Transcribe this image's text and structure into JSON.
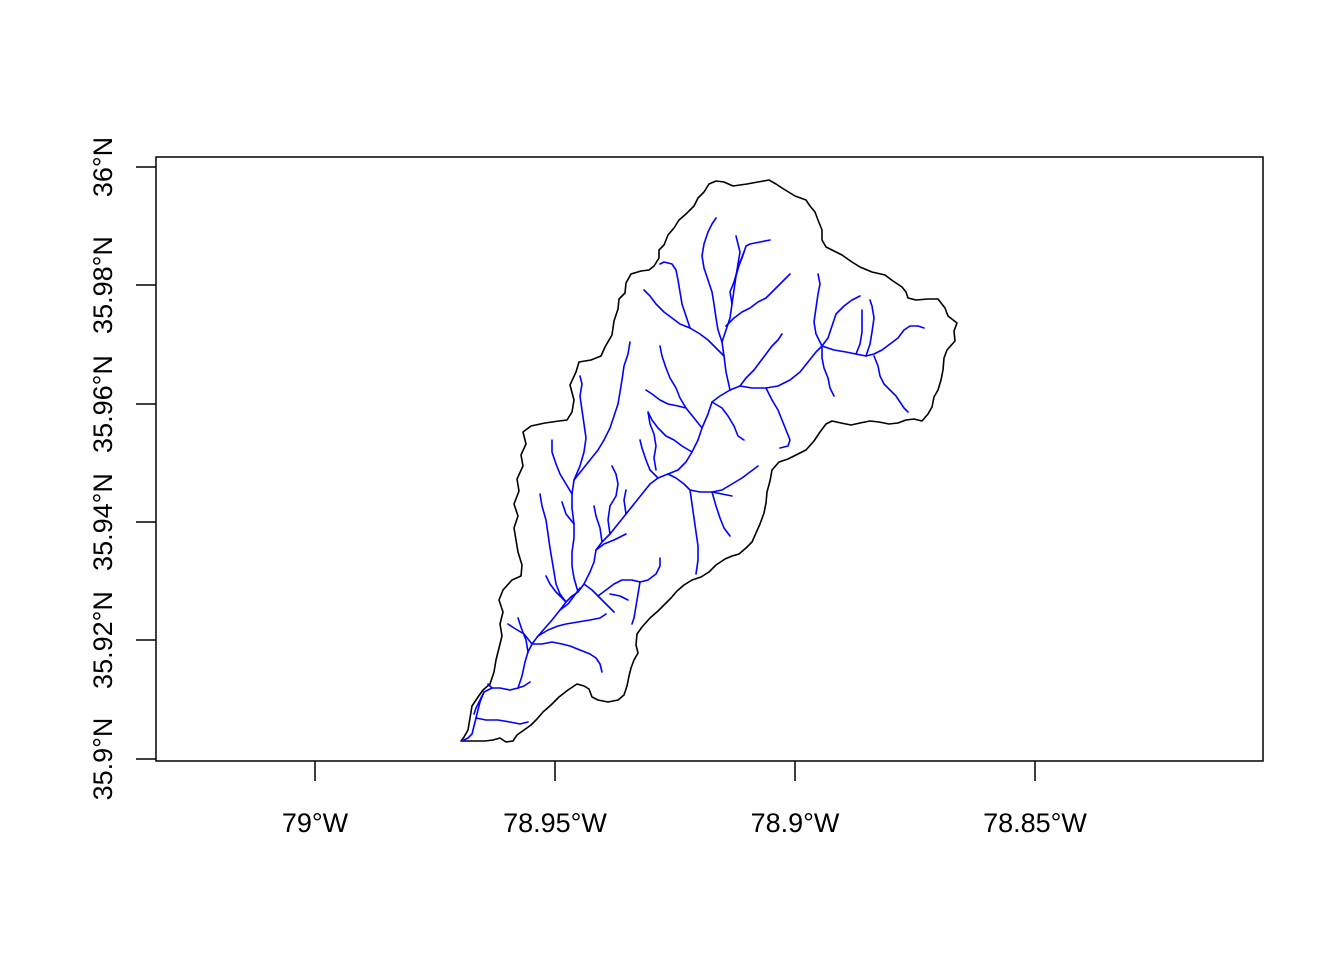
{
  "map": {
    "x_axis": {
      "ticks": [
        {
          "value": -79.0,
          "label": "79°W"
        },
        {
          "value": -78.95,
          "label": "78.95°W"
        },
        {
          "value": -78.9,
          "label": "78.9°W"
        },
        {
          "value": -78.85,
          "label": "78.85°W"
        }
      ]
    },
    "y_axis": {
      "ticks": [
        {
          "value": 35.9,
          "label": "35.9°N"
        },
        {
          "value": 35.92,
          "label": "35.92°N"
        },
        {
          "value": 35.94,
          "label": "35.94°N"
        },
        {
          "value": 35.96,
          "label": "35.96°N"
        },
        {
          "value": 35.98,
          "label": "35.98°N"
        },
        {
          "value": 36.0,
          "label": "36°N"
        }
      ]
    },
    "colors": {
      "watershed_boundary": "#000000",
      "streams": "#0000ff",
      "frame": "#000000",
      "background": "#ffffff"
    }
  }
}
